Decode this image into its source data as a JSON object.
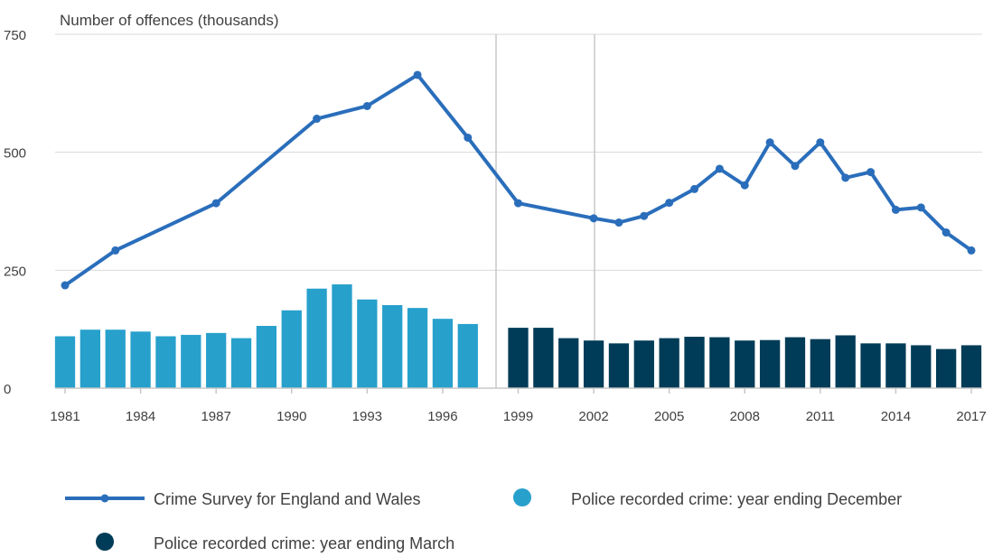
{
  "chart_data": {
    "type": "bar",
    "ylabel": "Number of offences (thousands)",
    "ylim": [
      0,
      750
    ],
    "yticks": [
      0,
      250,
      500,
      750
    ],
    "xticks": [
      1981,
      1984,
      1987,
      1990,
      1993,
      1996,
      1999,
      2002,
      2005,
      2008,
      2011,
      2014,
      2017
    ],
    "grid": true,
    "colors": {
      "line": "#2a6ebb",
      "bars_december": "#27a0cc",
      "bars_march": "#003c57",
      "grid": "#d9d9d9",
      "axis": "#c8c8c8"
    },
    "series": [
      {
        "name": "Crime Survey for England and Wales",
        "kind": "line",
        "x": [
          1981,
          1983,
          1987,
          1991,
          1993,
          1995,
          1997,
          1999,
          2002,
          2003,
          2004,
          2005,
          2006,
          2007,
          2008,
          2009,
          2010,
          2011,
          2012,
          2013,
          2014,
          2015,
          2016,
          2017
        ],
        "values": [
          218,
          292,
          392,
          571,
          598,
          664,
          531,
          392,
          360,
          351,
          365,
          393,
          422,
          465,
          430,
          521,
          471,
          521,
          446,
          458,
          378,
          383,
          330,
          292
        ]
      },
      {
        "name": "Police recorded crime: year ending December",
        "kind": "bar",
        "x": [
          1981,
          1982,
          1983,
          1984,
          1985,
          1986,
          1987,
          1988,
          1989,
          1990,
          1991,
          1992,
          1993,
          1994,
          1995,
          1996,
          1997
        ],
        "values": [
          110,
          124,
          124,
          120,
          110,
          113,
          117,
          106,
          132,
          165,
          211,
          220,
          188,
          176,
          170,
          147,
          136
        ]
      },
      {
        "name": "Police recorded crime: year ending March",
        "kind": "bar",
        "x": [
          1999,
          2000,
          2001,
          2002,
          2003,
          2004,
          2005,
          2006,
          2007,
          2008,
          2009,
          2010,
          2011,
          2012,
          2013,
          2014,
          2015,
          2016,
          2017
        ],
        "values": [
          128,
          128,
          106,
          101,
          95,
          101,
          106,
          109,
          108,
          101,
          102,
          108,
          104,
          112,
          95,
          95,
          91,
          83,
          91
        ]
      }
    ],
    "legend_position": "bottom"
  }
}
